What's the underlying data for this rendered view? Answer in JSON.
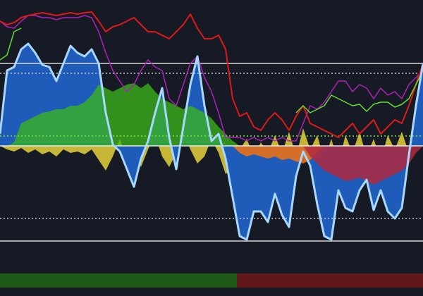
{
  "chart_data": {
    "type": "indicator",
    "background": "#161a24",
    "xlim": [
      0,
      60
    ],
    "ylim": [
      -173,
      207
    ],
    "x": [
      0,
      1,
      2,
      3,
      4,
      5,
      6,
      7,
      8,
      9,
      10,
      11,
      12,
      13,
      14,
      15,
      16,
      17,
      18,
      19,
      20,
      21,
      22,
      23,
      24,
      25,
      26,
      27,
      28,
      29,
      30,
      31,
      32,
      33,
      34,
      35,
      36,
      37,
      38,
      39,
      40,
      41,
      42,
      43,
      44,
      45,
      46,
      47,
      48,
      49,
      50,
      51,
      52,
      53,
      54,
      55,
      56,
      57,
      58,
      59,
      60
    ],
    "hlines": [
      {
        "value": 117,
        "style": "solid",
        "color": "#d8d8d8"
      },
      {
        "value": 103,
        "style": "dotted",
        "color": "#c8c8c8"
      },
      {
        "value": 14,
        "style": "dotted",
        "color": "#7fe040"
      },
      {
        "value": 0,
        "style": "solid",
        "color": "#e8e8e8"
      },
      {
        "value": -103,
        "style": "dotted",
        "color": "#c8c8c8"
      },
      {
        "value": -135,
        "style": "solid",
        "color": "#d8d8d8"
      }
    ],
    "series": [
      {
        "kind": "area",
        "color": "#d8c83a",
        "opacity": 0.9,
        "values": [
          0,
          -5,
          -8,
          -3,
          -10,
          -5,
          -12,
          -8,
          -15,
          -5,
          -10,
          -8,
          -12,
          -5,
          -20,
          -35,
          -15,
          10,
          -20,
          -10,
          -30,
          -5,
          15,
          -15,
          -30,
          -10,
          20,
          -5,
          -25,
          -15,
          10,
          -10,
          -40,
          -30,
          -5,
          10,
          -15,
          5,
          -10,
          15,
          -10,
          20,
          -15,
          25,
          -5,
          15,
          -20,
          10,
          -25,
          15,
          -10,
          20,
          -15,
          10,
          -20,
          15,
          -5,
          20,
          -10,
          10,
          5
        ]
      },
      {
        "kind": "area",
        "color": "#1f5bb8",
        "opacity": 1,
        "outline": "#a8d8ff",
        "values": [
          17,
          107,
          112,
          137,
          145,
          132,
          115,
          112,
          92,
          117,
          142,
          132,
          127,
          137,
          117,
          47,
          2,
          -8,
          -33,
          -58,
          -18,
          7,
          47,
          82,
          12,
          -33,
          27,
          87,
          127,
          57,
          7,
          17,
          -18,
          -73,
          -128,
          -133,
          -93,
          -93,
          -108,
          -68,
          -98,
          -115,
          -43,
          -8,
          -28,
          -83,
          -128,
          -133,
          -63,
          -88,
          -93,
          -63,
          -48,
          -91,
          -63,
          -93,
          -103,
          -88,
          -13,
          57,
          117
        ]
      },
      {
        "kind": "area",
        "color": "#3cb81a",
        "opacity": 0.75,
        "values": [
          0,
          0,
          5,
          32,
          37,
          42,
          47,
          49,
          52,
          52,
          57,
          57,
          62,
          72,
          87,
          82,
          77,
          82,
          87,
          89,
          82,
          89,
          77,
          67,
          62,
          57,
          52,
          57,
          52,
          47,
          39,
          27,
          17,
          7,
          0,
          null,
          null,
          null,
          null,
          null,
          null,
          null,
          null,
          null,
          null,
          null,
          null,
          null,
          null,
          null,
          null,
          null,
          null,
          null,
          null,
          null,
          null,
          null,
          null,
          null,
          null
        ]
      },
      {
        "kind": "area",
        "color": "#e8701a",
        "opacity": 0.9,
        "values": [
          null,
          null,
          null,
          null,
          null,
          null,
          null,
          null,
          null,
          null,
          null,
          null,
          null,
          null,
          null,
          null,
          null,
          null,
          null,
          null,
          null,
          null,
          null,
          null,
          null,
          null,
          null,
          null,
          null,
          null,
          null,
          null,
          null,
          0,
          -10,
          -15,
          -12,
          -15,
          -18,
          -15,
          -20,
          -18,
          -22,
          -25,
          -20,
          -10,
          0,
          null,
          null,
          null,
          null,
          null,
          null,
          null,
          null,
          null,
          null,
          null,
          null,
          null,
          null
        ]
      },
      {
        "kind": "area",
        "color": "#b02a40",
        "opacity": 0.85,
        "values": [
          null,
          null,
          null,
          null,
          null,
          null,
          null,
          null,
          null,
          null,
          null,
          null,
          null,
          null,
          null,
          null,
          null,
          null,
          null,
          null,
          null,
          null,
          null,
          null,
          null,
          null,
          null,
          null,
          null,
          null,
          null,
          null,
          null,
          null,
          null,
          null,
          null,
          null,
          null,
          null,
          null,
          null,
          null,
          0,
          -15,
          -25,
          -35,
          -40,
          -45,
          -50,
          -48,
          -45,
          -50,
          -55,
          -50,
          -45,
          -40,
          -35,
          -25,
          -10,
          0
        ]
      },
      {
        "kind": "line",
        "color": "#b020b8",
        "width": 1.5,
        "values": [
          177,
          169,
          167,
          177,
          185,
          185,
          182,
          182,
          179,
          182,
          182,
          182,
          185,
          182,
          162,
          132,
          107,
          92,
          77,
          87,
          107,
          122,
          112,
          107,
          67,
          57,
          87,
          117,
          127,
          97,
          77,
          47,
          12,
          12,
          12,
          7,
          12,
          7,
          12,
          7,
          12,
          7,
          7,
          32,
          57,
          52,
          62,
          77,
          92,
          92,
          77,
          87,
          82,
          67,
          82,
          72,
          77,
          67,
          87,
          97,
          107
        ]
      },
      {
        "kind": "line",
        "color": "#e01818",
        "width": 2,
        "values": [
          177,
          172,
          175,
          182,
          185,
          187,
          189,
          187,
          185,
          187,
          189,
          187,
          189,
          190,
          177,
          162,
          169,
          172,
          177,
          182,
          172,
          162,
          162,
          157,
          152,
          162,
          172,
          187,
          167,
          152,
          152,
          157,
          137,
          67,
          42,
          47,
          27,
          22,
          37,
          47,
          37,
          22,
          42,
          57,
          32,
          27,
          22,
          17,
          12,
          22,
          32,
          17,
          27,
          37,
          17,
          27,
          37,
          32,
          57,
          87,
          117
        ]
      },
      {
        "kind": "line",
        "color": "#60e030",
        "width": 1.5,
        "values": [
          122,
          129,
          162,
          167,
          null,
          null,
          null,
          null,
          null,
          null,
          null,
          null,
          null,
          null,
          null,
          null,
          null,
          null,
          null,
          null,
          null,
          null,
          null,
          null,
          null,
          null,
          null,
          null,
          null,
          null,
          null,
          null,
          null,
          null,
          null,
          null,
          null,
          null,
          null,
          null,
          null,
          null,
          47,
          57,
          47,
          52,
          57,
          72,
          67,
          62,
          57,
          59,
          49,
          59,
          62,
          62,
          55,
          59,
          67,
          87,
          107
        ]
      }
    ],
    "strip": [
      {
        "from": 0,
        "to": 33.6,
        "color": "#1e5a16"
      },
      {
        "from": 33.6,
        "to": 60,
        "color": "#621818"
      }
    ]
  }
}
